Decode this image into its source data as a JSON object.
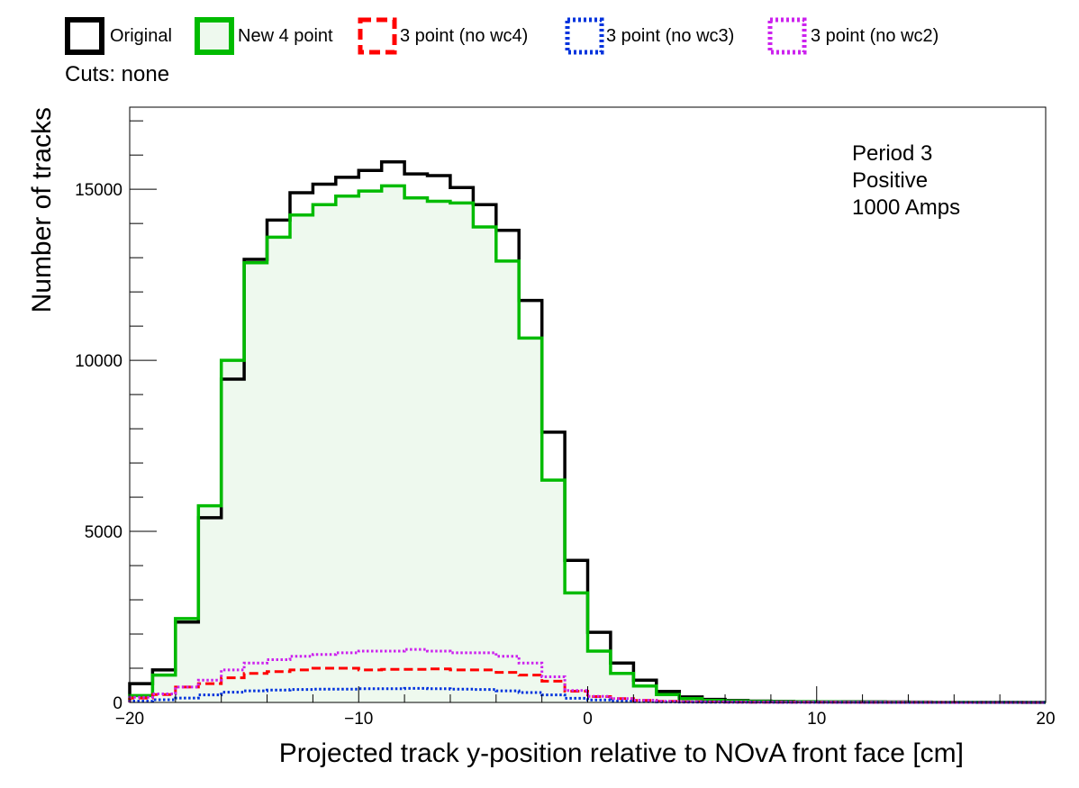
{
  "chart_data": {
    "type": "line",
    "style": "step-histogram",
    "title": "",
    "xlabel": "Projected track y-position relative to NOvA front face [cm]",
    "ylabel": "Number of tracks",
    "xlim": [
      -20,
      20
    ],
    "ylim": [
      0,
      17400
    ],
    "bin_width": 1,
    "x_ticks": [
      -20,
      -10,
      0,
      10,
      20
    ],
    "x_tick_labels": [
      "−20",
      "−10",
      "0",
      "10",
      "20"
    ],
    "y_ticks": [
      0,
      5000,
      10000,
      15000
    ],
    "y_tick_labels": [
      "0",
      "5000",
      "10000",
      "15000"
    ],
    "grid": false,
    "legend_position": "top",
    "cuts_label": "Cuts: none",
    "annotations": [
      "Period 3",
      "Positive",
      "1000 Amps"
    ],
    "bin_low_edges": [
      -20,
      -19,
      -18,
      -17,
      -16,
      -15,
      -14,
      -13,
      -12,
      -11,
      -10,
      -9,
      -8,
      -7,
      -6,
      -5,
      -4,
      -3,
      -2,
      -1,
      0,
      1,
      2,
      3,
      4,
      5,
      6,
      7,
      8,
      9,
      10,
      11,
      12,
      13,
      14,
      15,
      16,
      17,
      18,
      19
    ],
    "series": [
      {
        "name": "Original",
        "color": "#000000",
        "line_style": "solid",
        "filled": false,
        "values": [
          550,
          950,
          2350,
          5400,
          9450,
          12950,
          14100,
          14900,
          15150,
          15350,
          15550,
          15800,
          15450,
          15400,
          15050,
          14550,
          13800,
          11750,
          7900,
          4150,
          2050,
          1150,
          650,
          320,
          160,
          90,
          55,
          40,
          30,
          25,
          20,
          18,
          15,
          12,
          10,
          8,
          6,
          5,
          4,
          3
        ]
      },
      {
        "name": "New 4 point",
        "color": "#00bb00",
        "line_style": "solid",
        "filled": true,
        "fill_color": "#eef9ee",
        "values": [
          200,
          800,
          2450,
          5750,
          10000,
          12850,
          13600,
          14250,
          14550,
          14800,
          14950,
          15100,
          14750,
          14650,
          14600,
          13900,
          12900,
          10650,
          6500,
          3200,
          1500,
          850,
          480,
          230,
          110,
          60,
          40,
          30,
          22,
          18,
          15,
          12,
          10,
          8,
          6,
          5,
          4,
          3,
          2,
          2
        ]
      },
      {
        "name": "3 point (no wc4)",
        "color": "#ff0000",
        "line_style": "dashed",
        "filled": false,
        "values": [
          130,
          230,
          450,
          550,
          720,
          850,
          900,
          950,
          1000,
          1000,
          950,
          970,
          970,
          980,
          950,
          950,
          880,
          800,
          620,
          330,
          170,
          110,
          60,
          35,
          22,
          14,
          10,
          8,
          6,
          5,
          4,
          3,
          3,
          2,
          2,
          2,
          1,
          1,
          1,
          1
        ]
      },
      {
        "name": "3 point (no wc3)",
        "color": "#0033dd",
        "line_style": "dotted",
        "filled": false,
        "values": [
          40,
          80,
          130,
          220,
          300,
          340,
          360,
          380,
          390,
          390,
          400,
          400,
          410,
          400,
          390,
          380,
          340,
          290,
          220,
          120,
          70,
          40,
          25,
          15,
          10,
          7,
          5,
          4,
          3,
          3,
          2,
          2,
          2,
          1,
          1,
          1,
          1,
          1,
          1,
          1
        ]
      },
      {
        "name": "3 point (no wc2)",
        "color": "#cc22ee",
        "line_style": "dotted",
        "filled": false,
        "values": [
          150,
          250,
          450,
          650,
          950,
          1150,
          1250,
          1350,
          1400,
          1450,
          1500,
          1500,
          1550,
          1500,
          1450,
          1450,
          1350,
          1150,
          750,
          350,
          180,
          110,
          65,
          35,
          22,
          15,
          10,
          8,
          6,
          5,
          4,
          3,
          3,
          2,
          2,
          2,
          1,
          1,
          1,
          1
        ]
      }
    ]
  }
}
